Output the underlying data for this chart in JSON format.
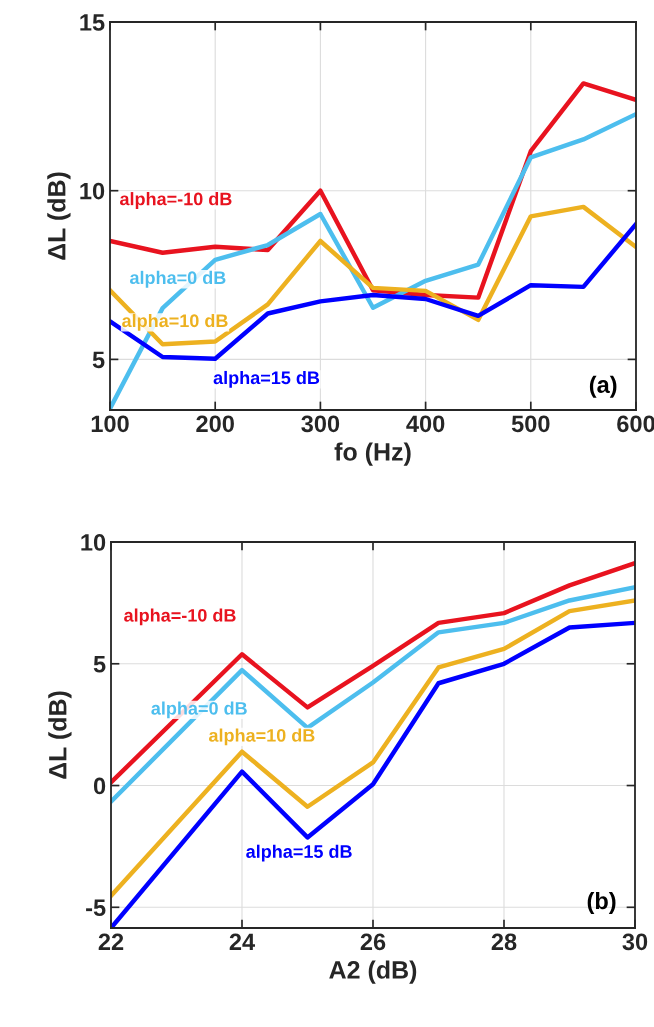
{
  "chart_data": [
    {
      "type": "line",
      "xlabel": "fo (Hz)",
      "ylabel": "ΔL (dB)",
      "x": [
        100,
        150,
        200,
        250,
        300,
        350,
        400,
        450,
        500,
        550,
        600
      ],
      "xlim": [
        100,
        600
      ],
      "xticks": [
        100,
        200,
        300,
        400,
        500,
        600
      ],
      "ylim": [
        3.5,
        15
      ],
      "yticks": [
        5,
        10,
        15
      ],
      "grid": true,
      "annotations": [
        "(a)"
      ],
      "series": [
        {
          "name": "alpha=-10 dB",
          "color": "#e8131f",
          "values": [
            8.51,
            8.16,
            8.34,
            8.24,
            10.0,
            7.05,
            6.91,
            6.83,
            11.17,
            13.18,
            12.69
          ]
        },
        {
          "name": "alpha=0 dB",
          "color": "#4dbeee",
          "values": [
            3.54,
            6.52,
            7.95,
            8.39,
            9.31,
            6.53,
            7.33,
            7.81,
            10.99,
            11.52,
            12.27
          ]
        },
        {
          "name": "alpha=10 dB",
          "color": "#edb120",
          "values": [
            7.05,
            5.45,
            5.53,
            6.63,
            8.51,
            7.12,
            7.03,
            6.17,
            9.24,
            9.52,
            8.33
          ]
        },
        {
          "name": "alpha=15 dB",
          "color": "#0000ff",
          "values": [
            6.13,
            5.07,
            5.02,
            6.36,
            6.72,
            6.91,
            6.79,
            6.29,
            7.2,
            7.15,
            9.01
          ]
        }
      ]
    },
    {
      "type": "line",
      "xlabel": "A2 (dB)",
      "ylabel": "ΔL (dB)",
      "x": [
        22,
        24,
        25,
        26,
        27,
        28,
        29,
        30
      ],
      "xlim": [
        22,
        30
      ],
      "xticks": [
        22,
        24,
        26,
        28,
        30
      ],
      "ylim": [
        -5.85,
        10
      ],
      "yticks": [
        -5,
        0,
        5,
        10
      ],
      "grid": true,
      "annotations": [
        "(b)"
      ],
      "series": [
        {
          "name": "alpha=-10 dB",
          "color": "#e8131f",
          "values": [
            0.13,
            5.39,
            3.21,
            4.91,
            6.68,
            7.08,
            8.22,
            9.13
          ]
        },
        {
          "name": "alpha=0 dB",
          "color": "#4dbeee",
          "values": [
            -0.66,
            4.74,
            2.37,
            4.23,
            6.29,
            6.68,
            7.6,
            8.14
          ]
        },
        {
          "name": "alpha=10 dB",
          "color": "#edb120",
          "values": [
            -4.53,
            1.39,
            -0.87,
            0.95,
            4.85,
            5.61,
            7.16,
            7.6
          ]
        },
        {
          "name": "alpha=15 dB",
          "color": "#0000ff",
          "values": [
            -5.85,
            0.57,
            -2.13,
            0.05,
            4.2,
            5.0,
            6.49,
            6.68
          ]
        }
      ]
    }
  ]
}
